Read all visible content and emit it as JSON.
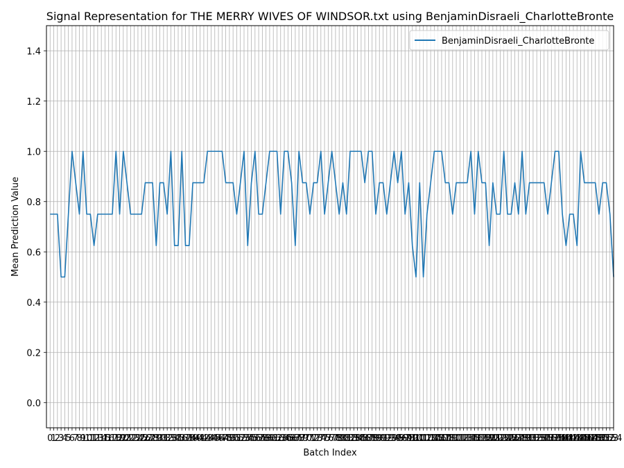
{
  "chart_data": {
    "type": "line",
    "title": "Signal Representation for THE MERRY WIVES OF WINDSOR.txt using BenjaminDisraeli_CharlotteBronte",
    "xlabel": "Batch Index",
    "ylabel": "Mean Prediction Value",
    "ylim": [
      -0.1,
      1.5
    ],
    "yticks": [
      0.0,
      0.2,
      0.4,
      0.6,
      0.8,
      1.0,
      1.2,
      1.4
    ],
    "ytick_labels": [
      "0.0",
      "0.2",
      "0.4",
      "0.6",
      "0.8",
      "1.0",
      "1.2",
      "1.4"
    ],
    "xlim": [
      -1,
      154
    ],
    "xtick_step": 1,
    "grid": true,
    "legend_position": "upper right",
    "series": [
      {
        "name": "BenjaminDisraeli_CharlotteBronte",
        "color": "#1f77b4",
        "values": [
          0.75,
          0.75,
          0.75,
          0.5,
          0.5,
          0.75,
          1.0,
          0.875,
          0.75,
          1.0,
          0.75,
          0.75,
          0.625,
          0.75,
          0.75,
          0.75,
          0.75,
          0.75,
          1.0,
          0.75,
          1.0,
          0.875,
          0.75,
          0.75,
          0.75,
          0.75,
          0.875,
          0.875,
          0.875,
          0.625,
          0.875,
          0.875,
          0.75,
          1.0,
          0.625,
          0.625,
          1.0,
          0.625,
          0.625,
          0.875,
          0.875,
          0.875,
          0.875,
          1.0,
          1.0,
          1.0,
          1.0,
          1.0,
          0.875,
          0.875,
          0.875,
          0.75,
          0.875,
          1.0,
          0.625,
          0.875,
          1.0,
          0.75,
          0.75,
          0.875,
          1.0,
          1.0,
          1.0,
          0.75,
          1.0,
          1.0,
          0.875,
          0.625,
          1.0,
          0.875,
          0.875,
          0.75,
          0.875,
          0.875,
          1.0,
          0.75,
          0.875,
          1.0,
          0.875,
          0.75,
          0.875,
          0.75,
          1.0,
          1.0,
          1.0,
          1.0,
          0.875,
          1.0,
          1.0,
          0.75,
          0.875,
          0.875,
          0.75,
          0.875,
          1.0,
          0.875,
          1.0,
          0.75,
          0.875,
          0.625,
          0.5,
          0.875,
          0.5,
          0.75,
          0.875,
          1.0,
          1.0,
          1.0,
          0.875,
          0.875,
          0.75,
          0.875,
          0.875,
          0.875,
          0.875,
          1.0,
          0.75,
          1.0,
          0.875,
          0.875,
          0.625,
          0.875,
          0.75,
          0.75,
          1.0,
          0.75,
          0.75,
          0.875,
          0.75,
          1.0,
          0.75,
          0.875,
          0.875,
          0.875,
          0.875,
          0.875,
          0.75,
          0.875,
          1.0,
          1.0,
          0.75,
          0.625,
          0.75,
          0.75,
          0.625,
          1.0,
          0.875,
          0.875,
          0.875,
          0.875,
          0.75,
          0.875,
          0.875,
          0.75,
          0.5
        ]
      }
    ]
  }
}
